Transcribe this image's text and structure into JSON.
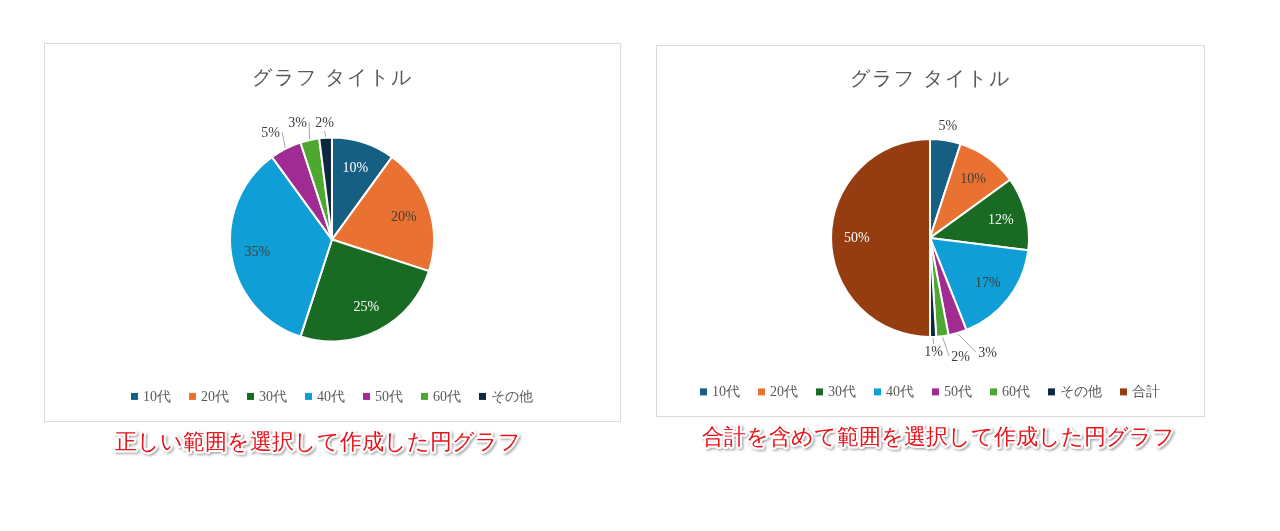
{
  "chart_data": [
    {
      "type": "pie",
      "title": "グラフ タイトル",
      "categories": [
        "10代",
        "20代",
        "30代",
        "40代",
        "50代",
        "60代",
        "その他"
      ],
      "values": [
        10,
        20,
        25,
        35,
        5,
        3,
        2
      ],
      "colors": [
        "#156082",
        "#e97132",
        "#196b24",
        "#0f9ed5",
        "#a02b93",
        "#4ea72e",
        "#0e2841"
      ],
      "value_labels": [
        "10%",
        "20%",
        "25%",
        "35%",
        "5%",
        "3%",
        "2%"
      ],
      "legend": "bottom",
      "annotations": [
        "正しい範囲を選択して作成した円グラフ"
      ]
    },
    {
      "type": "pie",
      "title": "グラフ タイトル",
      "categories": [
        "10代",
        "20代",
        "30代",
        "40代",
        "50代",
        "60代",
        "その他",
        "合計"
      ],
      "values": [
        5,
        10,
        12,
        17,
        3,
        2,
        1,
        50
      ],
      "colors": [
        "#156082",
        "#e97132",
        "#196b24",
        "#0f9ed5",
        "#a02b93",
        "#4ea72e",
        "#0e2841",
        "#953c10"
      ],
      "value_labels": [
        "5%",
        "10%",
        "12%",
        "17%",
        "3%",
        "2%",
        "1%",
        "50%"
      ],
      "legend": "bottom",
      "annotations": [
        "合計を含めて範囲を選択して作成した円グラフ"
      ]
    }
  ]
}
